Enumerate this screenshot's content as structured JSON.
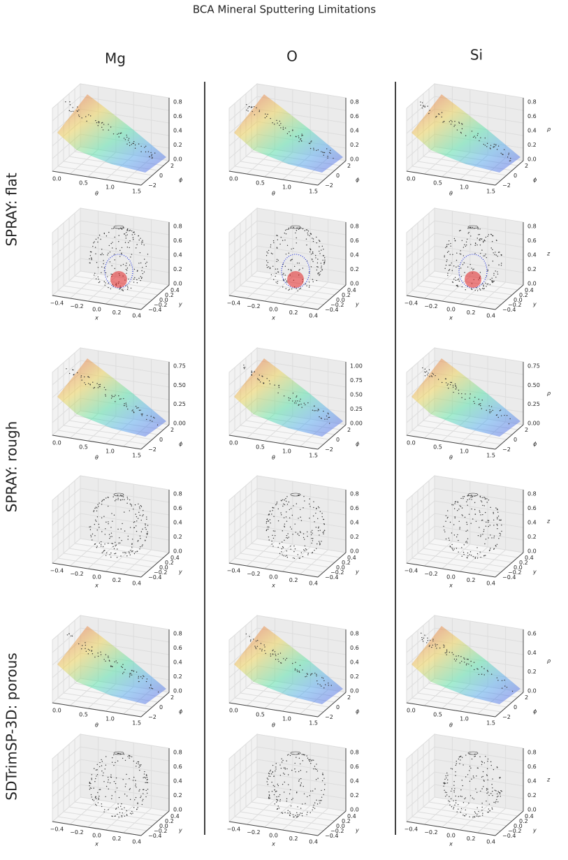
{
  "title": "BCA Mineral Sputtering Limitations",
  "columns": [
    "Mg",
    "O",
    "Si"
  ],
  "surface_axes": {
    "xticks": [
      "0.0",
      "0.5",
      "1.0",
      "1.5"
    ],
    "xlabel": "θ",
    "yticks": [
      "−2",
      "0",
      "2"
    ],
    "ylabel": "ϕ"
  },
  "sphere_axes": {
    "xticks": [
      "−0.4",
      "−0.2",
      "0.0",
      "0.2",
      "0.4"
    ],
    "xlabel": "x",
    "yticks": [
      "−0.4",
      "−0.2",
      "0.0",
      "0.2",
      "0.4"
    ],
    "ylabel": "y",
    "zticks": [
      "0.0",
      "0.2",
      "0.4",
      "0.6",
      "0.8"
    ]
  },
  "rows": [
    {
      "label": "SPRAY: flat",
      "cells": [
        {
          "surface_zticks": [
            "0.0",
            "0.2",
            "0.4",
            "0.6",
            "0.8"
          ]
        },
        {
          "surface_zticks": [
            "0.0",
            "0.2",
            "0.4",
            "0.6",
            "0.8"
          ]
        },
        {
          "surface_zticks": [
            "0.0",
            "0.2",
            "0.4",
            "0.6",
            "0.8"
          ],
          "surface_zlabel": "ρ",
          "sphere_zlabel": "z"
        }
      ]
    },
    {
      "label": "SPRAY: rough",
      "cells": [
        {
          "surface_zticks": [
            "0.00",
            "0.25",
            "0.50",
            "0.75"
          ]
        },
        {
          "surface_zticks": [
            "0.00",
            "0.25",
            "0.50",
            "0.75",
            "1.00"
          ]
        },
        {
          "surface_zticks": [
            "0.00",
            "0.25",
            "0.50",
            "0.75"
          ],
          "surface_zlabel": "ρ",
          "sphere_zlabel": "z"
        }
      ]
    },
    {
      "label": "SDTrimSP-3D: porous",
      "cells": [
        {
          "surface_zticks": [
            "0.0",
            "0.2",
            "0.4",
            "0.6",
            "0.8"
          ]
        },
        {
          "surface_zticks": [
            "0.0",
            "0.2",
            "0.4",
            "0.6",
            "0.8"
          ]
        },
        {
          "surface_zticks": [
            "0.0",
            "0.2",
            "0.4",
            "0.6"
          ],
          "surface_zlabel": "ρ",
          "sphere_zlabel": "z"
        }
      ]
    }
  ]
}
